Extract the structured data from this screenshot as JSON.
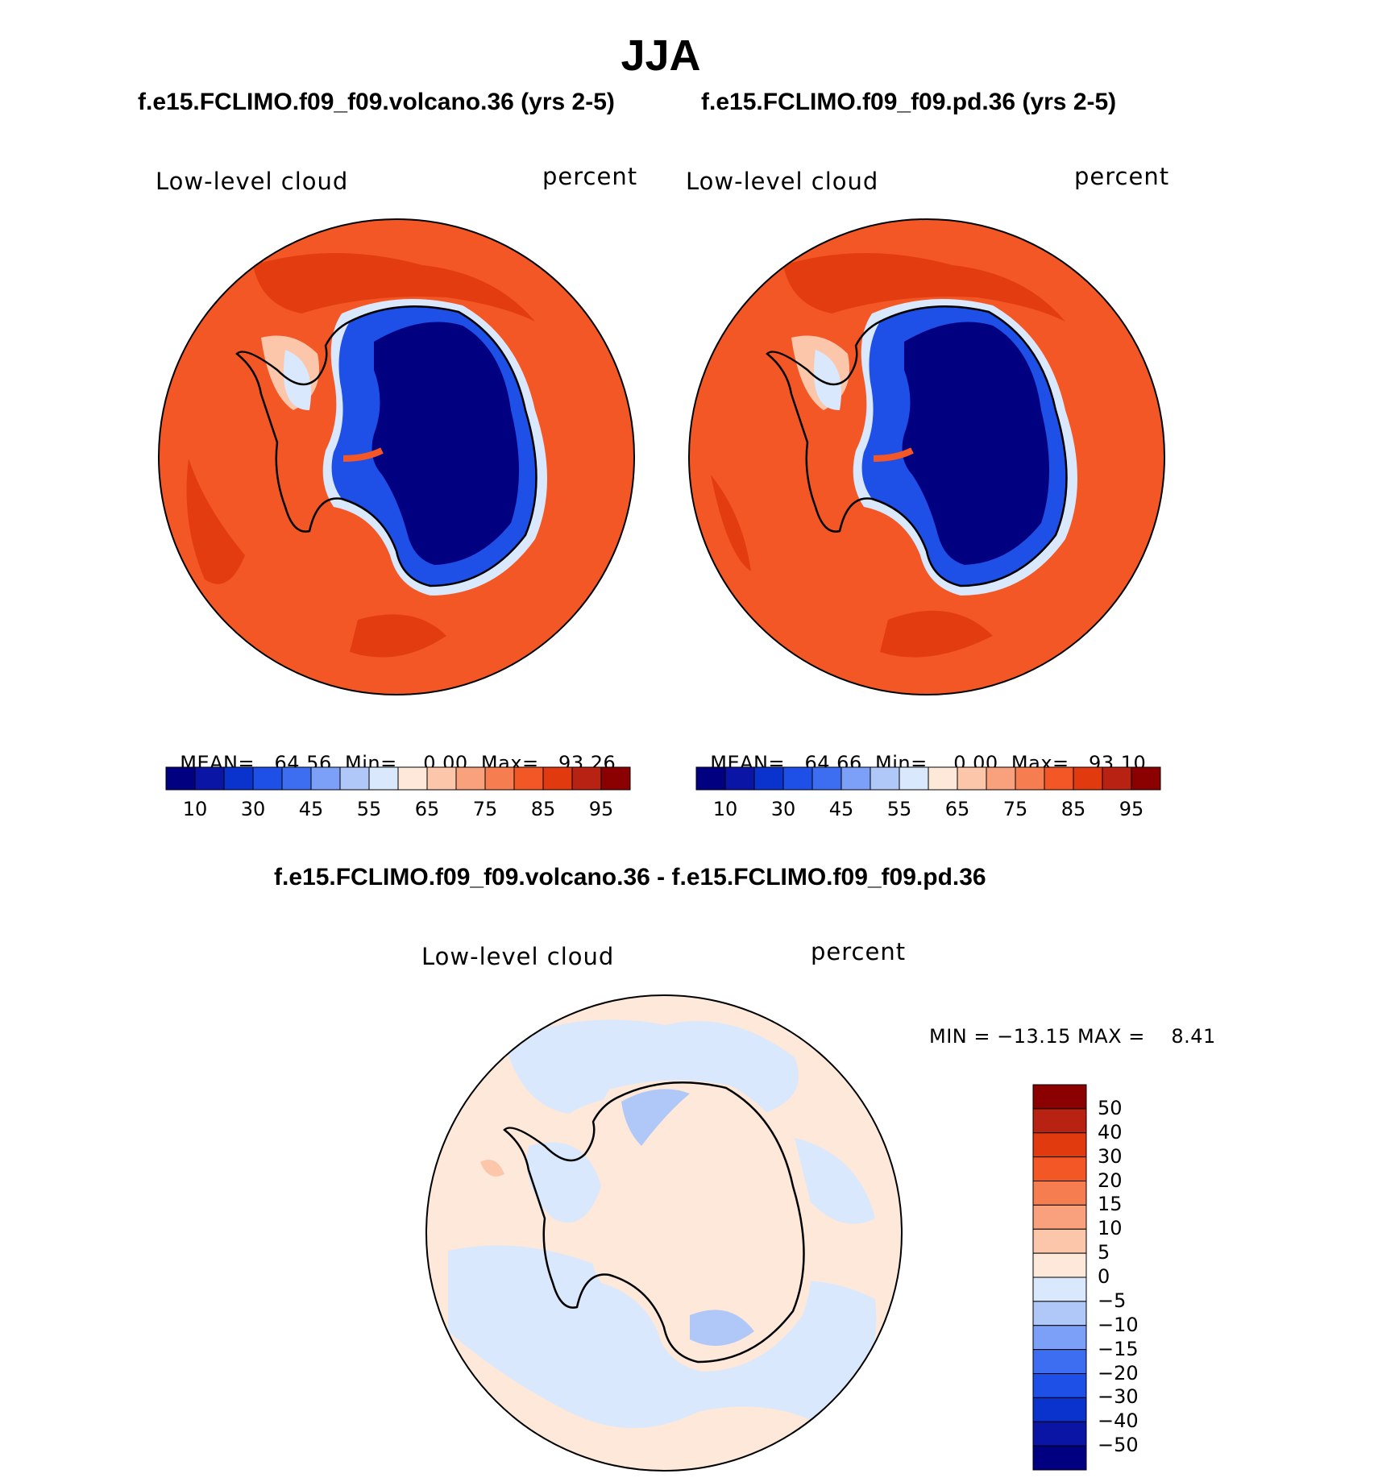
{
  "title": "JJA",
  "panels": [
    {
      "case_title": "f.e15.FCLIMO.f09_f09.volcano.36 (yrs 2-5)",
      "variable": "Low-level cloud",
      "units": "percent",
      "stats": {
        "mean_label": "MEAN=",
        "mean": "64.56",
        "min_label": "Min=",
        "min": "0.00",
        "max_label": "Max=",
        "max": "93.26"
      },
      "colorbar": {
        "colors": [
          "#000080",
          "#0a15a5",
          "#0a32cc",
          "#1e4fe6",
          "#3d6ef2",
          "#7c9ff7",
          "#b0c8f8",
          "#d9e8fc",
          "#fde8d9",
          "#fcc6aa",
          "#f9a07d",
          "#f67d4f",
          "#f35725",
          "#e13a0f",
          "#b82212",
          "#8b0000"
        ],
        "ticks": [
          "10",
          "30",
          "45",
          "55",
          "65",
          "75",
          "85",
          "95"
        ]
      }
    },
    {
      "case_title": "f.e15.FCLIMO.f09_f09.pd.36 (yrs 2-5)",
      "variable": "Low-level cloud",
      "units": "percent",
      "stats": {
        "mean_label": "MEAN=",
        "mean": "64.66",
        "min_label": "Min=",
        "min": "0.00",
        "max_label": "Max=",
        "max": "93.10"
      },
      "colorbar": {
        "colors": [
          "#000080",
          "#0a15a5",
          "#0a32cc",
          "#1e4fe6",
          "#3d6ef2",
          "#7c9ff7",
          "#b0c8f8",
          "#d9e8fc",
          "#fde8d9",
          "#fcc6aa",
          "#f9a07d",
          "#f67d4f",
          "#f35725",
          "#e13a0f",
          "#b82212",
          "#8b0000"
        ],
        "ticks": [
          "10",
          "30",
          "45",
          "55",
          "65",
          "75",
          "85",
          "95"
        ]
      }
    }
  ],
  "diff": {
    "case_title": "f.e15.FCLIMO.f09_f09.volcano.36 - f.e15.FCLIMO.f09_f09.pd.36",
    "variable": "Low-level cloud",
    "units": "percent",
    "stats": "MIN = −13.15 MAX =    8.41",
    "colorbar": {
      "colors": [
        "#8b0000",
        "#b82212",
        "#e13a0f",
        "#f35725",
        "#f67d4f",
        "#f9a07d",
        "#fcc6aa",
        "#fde8d9",
        "#d9e8fc",
        "#b0c8f8",
        "#7c9ff7",
        "#3d6ef2",
        "#1e4fe6",
        "#0a32cc",
        "#0a15a5",
        "#000080"
      ],
      "ticks": [
        "50",
        "40",
        "30",
        "20",
        "15",
        "10",
        "5",
        "0",
        "−5",
        "−10",
        "−15",
        "−20",
        "−30",
        "−40",
        "−50"
      ]
    }
  },
  "colors": {
    "ocean_top": "#f35725",
    "ocean_bottom": "#f35725",
    "ocean_dark": "#e13a0f",
    "continent": "#000080",
    "diff_positive": "#fde8d9",
    "diff_negative": "#d9e8fc",
    "diff_negative_strong": "#b0c8f8"
  }
}
